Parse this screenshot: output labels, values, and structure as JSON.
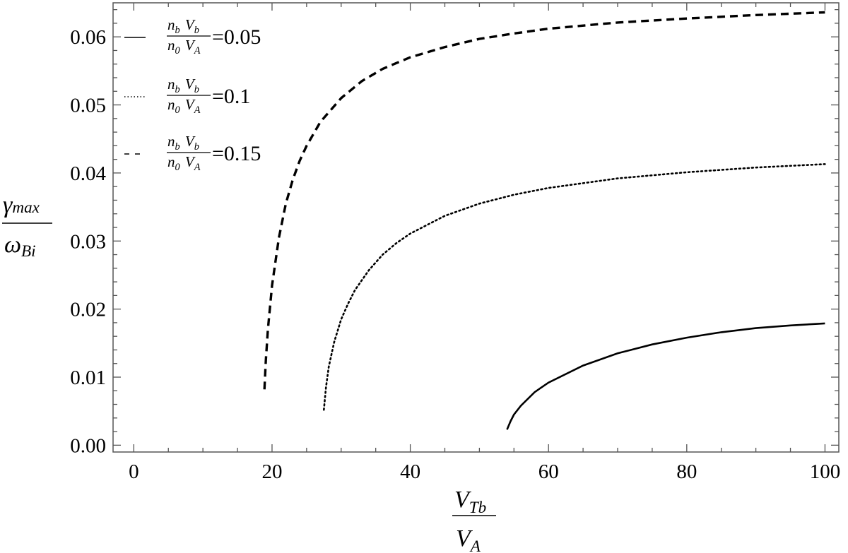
{
  "chart_data": {
    "type": "line",
    "xlim": [
      -3,
      102
    ],
    "ylim": [
      -0.001,
      0.065
    ],
    "x_ticks": [
      0,
      20,
      40,
      60,
      80,
      100
    ],
    "y_ticks": [
      0.0,
      0.01,
      0.02,
      0.03,
      0.04,
      0.05,
      0.06
    ],
    "x_tick_labels": [
      "0",
      "20",
      "40",
      "60",
      "80",
      "100"
    ],
    "y_tick_labels": [
      "0.00",
      "0.01",
      "0.02",
      "0.03",
      "0.04",
      "0.05",
      "0.06"
    ],
    "xlabel": {
      "numerator": "V",
      "numerator_sub": "Tb",
      "denominator": "V",
      "denominator_sub": "A"
    },
    "ylabel": {
      "numerator": "γ",
      "numerator_sub": "max",
      "denominator": "ω",
      "denominator_sub": "Bi"
    },
    "grid": false,
    "legend_position": "top-left",
    "legend_fraction": {
      "n_num": "n",
      "n_num_sub": "b",
      "v_num": "V",
      "v_num_sub": "b",
      "n_den": "n",
      "n_den_sub": "0",
      "v_den": "V",
      "v_den_sub": "A"
    },
    "series": [
      {
        "value_label": "=0.05",
        "style": "solid",
        "color": "#000000",
        "points": [
          [
            54,
            0.0023
          ],
          [
            54.5,
            0.0035
          ],
          [
            55,
            0.0045
          ],
          [
            56,
            0.0058
          ],
          [
            58,
            0.0078
          ],
          [
            60,
            0.0092
          ],
          [
            65,
            0.0117
          ],
          [
            70,
            0.0135
          ],
          [
            75,
            0.0148
          ],
          [
            80,
            0.0158
          ],
          [
            85,
            0.0166
          ],
          [
            90,
            0.0172
          ],
          [
            95,
            0.0176
          ],
          [
            100,
            0.0179
          ]
        ]
      },
      {
        "value_label": "=0.1",
        "style": "dotted",
        "color": "#000000",
        "points": [
          [
            27.5,
            0.0052
          ],
          [
            27.8,
            0.0085
          ],
          [
            28.2,
            0.0115
          ],
          [
            29,
            0.0152
          ],
          [
            30,
            0.0185
          ],
          [
            31,
            0.0208
          ],
          [
            32,
            0.0228
          ],
          [
            34,
            0.0257
          ],
          [
            36,
            0.028
          ],
          [
            38,
            0.0297
          ],
          [
            40,
            0.0311
          ],
          [
            45,
            0.0337
          ],
          [
            50,
            0.0355
          ],
          [
            55,
            0.0368
          ],
          [
            60,
            0.0378
          ],
          [
            70,
            0.0392
          ],
          [
            80,
            0.0401
          ],
          [
            90,
            0.0408
          ],
          [
            100,
            0.0413
          ]
        ]
      },
      {
        "value_label": "=0.15",
        "style": "dashed",
        "color": "#000000",
        "points": [
          [
            18.9,
            0.0082
          ],
          [
            19.1,
            0.0125
          ],
          [
            19.4,
            0.017
          ],
          [
            20,
            0.0235
          ],
          [
            21,
            0.0305
          ],
          [
            22,
            0.0355
          ],
          [
            23,
            0.039
          ],
          [
            24,
            0.0418
          ],
          [
            25,
            0.044
          ],
          [
            27,
            0.0475
          ],
          [
            30,
            0.051
          ],
          [
            33,
            0.0535
          ],
          [
            36,
            0.0553
          ],
          [
            40,
            0.057
          ],
          [
            45,
            0.0585
          ],
          [
            50,
            0.0597
          ],
          [
            55,
            0.0605
          ],
          [
            60,
            0.0612
          ],
          [
            70,
            0.0621
          ],
          [
            80,
            0.0627
          ],
          [
            90,
            0.0632
          ],
          [
            100,
            0.0636
          ]
        ]
      }
    ]
  }
}
